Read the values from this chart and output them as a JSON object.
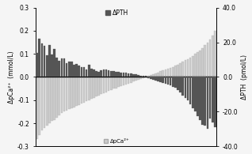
{
  "pca_values": [
    -0.27,
    -0.25,
    -0.23,
    -0.22,
    -0.21,
    -0.2,
    -0.19,
    -0.185,
    -0.175,
    -0.165,
    -0.155,
    -0.15,
    -0.145,
    -0.14,
    -0.135,
    -0.13,
    -0.125,
    -0.12,
    -0.115,
    -0.11,
    -0.105,
    -0.1,
    -0.095,
    -0.09,
    -0.085,
    -0.08,
    -0.075,
    -0.07,
    -0.065,
    -0.06,
    -0.055,
    -0.05,
    -0.048,
    -0.044,
    -0.04,
    -0.036,
    -0.032,
    -0.028,
    -0.024,
    -0.02,
    -0.016,
    -0.012,
    -0.008,
    -0.004,
    0.0,
    0.004,
    0.008,
    0.012,
    0.016,
    0.02,
    0.024,
    0.028,
    0.032,
    0.036,
    0.04,
    0.044,
    0.048,
    0.054,
    0.06,
    0.066,
    0.072,
    0.078,
    0.085,
    0.092,
    0.1,
    0.108,
    0.115,
    0.125,
    0.138,
    0.15,
    0.162,
    0.178,
    0.2
  ],
  "pth_values": [
    14.0,
    22.0,
    19.5,
    18.0,
    12.5,
    18.5,
    13.0,
    16.0,
    11.0,
    9.5,
    10.5,
    10.5,
    8.0,
    9.0,
    9.0,
    7.0,
    7.5,
    6.5,
    5.5,
    5.5,
    4.5,
    7.0,
    5.0,
    4.5,
    3.5,
    3.0,
    4.0,
    4.5,
    4.5,
    4.0,
    3.5,
    3.5,
    3.0,
    3.0,
    2.5,
    2.5,
    2.5,
    2.0,
    2.0,
    1.5,
    1.5,
    1.0,
    0.5,
    0.5,
    0.5,
    -0.5,
    -1.0,
    -1.5,
    -2.0,
    -2.5,
    -3.0,
    -3.5,
    -4.0,
    -4.5,
    -5.0,
    -5.5,
    -6.0,
    -7.5,
    -9.0,
    -10.5,
    -12.0,
    -13.5,
    -15.5,
    -18.0,
    -20.0,
    -22.5,
    -25.0,
    -27.5,
    -28.0,
    -30.0,
    -24.0,
    -26.0,
    -29.0
  ],
  "pca_color": "#cccccc",
  "pca_edge_color": "#aaaaaa",
  "pth_color": "#555555",
  "ylim_left": [
    -0.3,
    0.3
  ],
  "ylim_right": [
    -40.0,
    40.0
  ],
  "ylabel_left": "ΔpCa²⁺  (mmol/L)",
  "ylabel_right": "ΔPTH  (pmol/L)",
  "yticks_left": [
    -0.3,
    -0.2,
    -0.1,
    0.0,
    0.1,
    0.2,
    0.3
  ],
  "yticks_right": [
    -40.0,
    -20.0,
    0.0,
    20.0,
    40.0
  ],
  "legend_pth": "ΔPTH",
  "legend_pca": "ΔpCa²⁺",
  "background_color": "#f5f5f5",
  "bar_width": 0.85
}
